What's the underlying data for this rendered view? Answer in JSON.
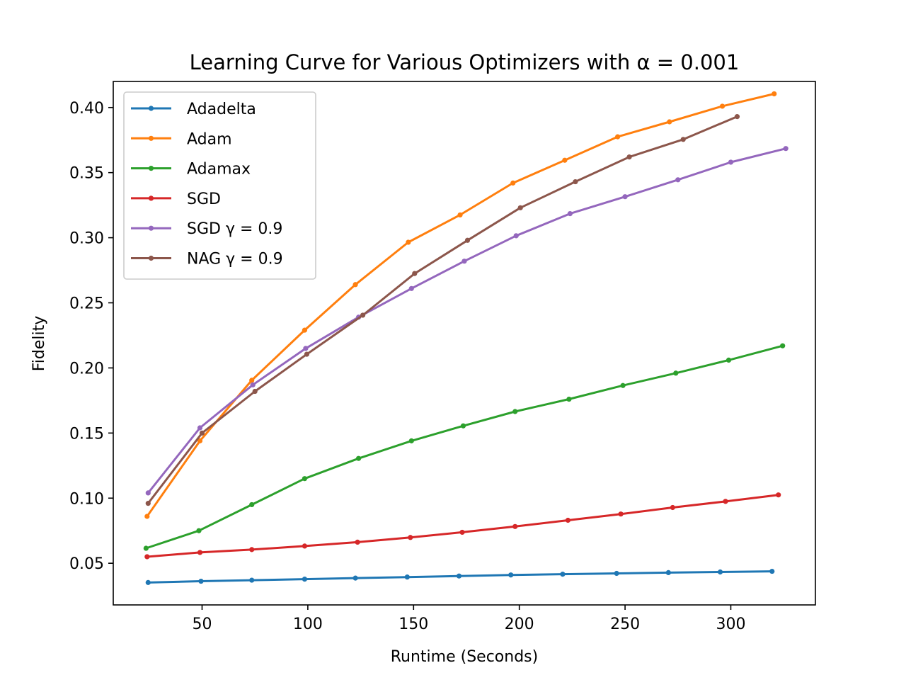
{
  "chart_data": {
    "type": "line",
    "title": "Learning Curve for Various Optimizers with α = 0.001",
    "xlabel": "Runtime (Seconds)",
    "ylabel": "Fidelity",
    "xlim": [
      8,
      340
    ],
    "ylim": [
      0.018,
      0.42
    ],
    "xticks": [
      50,
      100,
      150,
      200,
      250,
      300
    ],
    "yticks": [
      0.05,
      0.1,
      0.15,
      0.2,
      0.25,
      0.3,
      0.35,
      0.4
    ],
    "xtick_labels": [
      "50",
      "100",
      "150",
      "200",
      "250",
      "300"
    ],
    "ytick_labels": [
      "0.05",
      "0.10",
      "0.15",
      "0.20",
      "0.25",
      "0.30",
      "0.35",
      "0.40"
    ],
    "grid": false,
    "legend_position": "upper-left",
    "series": [
      {
        "name": "Adadelta",
        "color": "#1f77b4",
        "x": [
          24.5,
          49.5,
          73.5,
          98.5,
          122.5,
          147,
          171.5,
          196,
          220.5,
          246,
          270.5,
          295,
          319.5
        ],
        "y": [
          0.0352,
          0.0362,
          0.037,
          0.0378,
          0.0386,
          0.0394,
          0.0402,
          0.041,
          0.0416,
          0.0422,
          0.0428,
          0.0433,
          0.0438
        ]
      },
      {
        "name": "Adam",
        "color": "#ff7f0e",
        "x": [
          24,
          49,
          73.5,
          98.5,
          122.5,
          147.5,
          172,
          197,
          221.5,
          246.5,
          271,
          296,
          320.5
        ],
        "y": [
          0.086,
          0.144,
          0.1905,
          0.229,
          0.264,
          0.2965,
          0.3175,
          0.342,
          0.3595,
          0.3775,
          0.389,
          0.401,
          0.4105
        ]
      },
      {
        "name": "Adamax",
        "color": "#2ca02c",
        "x": [
          23.5,
          48.5,
          73.5,
          98.5,
          124,
          149,
          173.5,
          198,
          223.5,
          249,
          274,
          299,
          324.5
        ],
        "y": [
          0.0615,
          0.075,
          0.095,
          0.115,
          0.1305,
          0.144,
          0.1555,
          0.1665,
          0.176,
          0.1865,
          0.196,
          0.206,
          0.217
        ]
      },
      {
        "name": "SGD",
        "color": "#d62728",
        "x": [
          24,
          49,
          73.5,
          98.5,
          123.5,
          148.5,
          173,
          198,
          223,
          248,
          272.5,
          297.5,
          322.5
        ],
        "y": [
          0.055,
          0.0583,
          0.0605,
          0.0632,
          0.0662,
          0.0698,
          0.0738,
          0.0782,
          0.083,
          0.0878,
          0.0928,
          0.0975,
          0.1025
        ]
      },
      {
        "name": "SGD γ = 0.9",
        "color": "#9467bd",
        "x": [
          24.5,
          49,
          74,
          99,
          124,
          149,
          174,
          198.5,
          224,
          250,
          275,
          300,
          326
        ],
        "y": [
          0.104,
          0.154,
          0.187,
          0.215,
          0.239,
          0.261,
          0.282,
          0.3015,
          0.3185,
          0.3315,
          0.3445,
          0.358,
          0.3685
        ]
      },
      {
        "name": "NAG γ = 0.9",
        "color": "#8c564b",
        "x": [
          24.5,
          50,
          75,
          99.5,
          126,
          150.5,
          175.5,
          200.5,
          226.5,
          252,
          277.5,
          303
        ],
        "y": [
          0.096,
          0.15,
          0.182,
          0.2105,
          0.2405,
          0.2725,
          0.298,
          0.323,
          0.343,
          0.362,
          0.3755,
          0.393
        ]
      }
    ]
  }
}
